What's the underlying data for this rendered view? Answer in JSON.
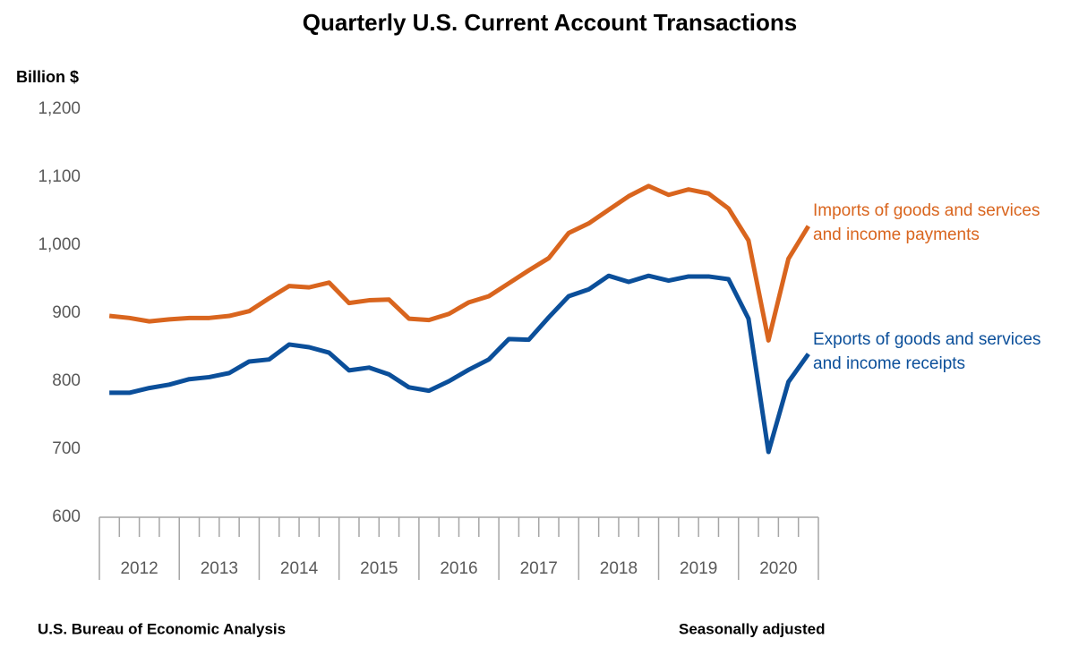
{
  "chart_data": {
    "type": "line",
    "title": "Quarterly U.S. Current Account Transactions",
    "y_label": "Billion $",
    "source": "U.S. Bureau of Economic Analysis",
    "note": "Seasonally adjusted",
    "categories": [
      "2012",
      null,
      null,
      null,
      "2013",
      null,
      null,
      null,
      "2014",
      null,
      null,
      null,
      "2015",
      null,
      null,
      null,
      "2016",
      null,
      null,
      null,
      "2017",
      null,
      null,
      null,
      "2018",
      null,
      null,
      null,
      "2019",
      null,
      null,
      null,
      "2020",
      null,
      null,
      null
    ],
    "series": [
      {
        "name": "Imports of goods and services and income payments",
        "color": "#d9651e",
        "values": [
          896,
          893,
          888,
          891,
          893,
          893,
          896,
          903,
          922,
          940,
          938,
          945,
          915,
          919,
          920,
          892,
          890,
          899,
          916,
          925,
          944,
          963,
          981,
          1018,
          1032,
          1052,
          1072,
          1087,
          1074,
          1082,
          1076,
          1054,
          1007,
          860,
          980,
          1028
        ]
      },
      {
        "name": "Exports of goods and services and income receipts",
        "color": "#0b4f9a",
        "values": [
          783,
          783,
          790,
          795,
          803,
          806,
          812,
          829,
          832,
          854,
          850,
          842,
          816,
          820,
          810,
          791,
          786,
          800,
          817,
          832,
          862,
          861,
          894,
          925,
          935,
          955,
          946,
          955,
          948,
          954,
          954,
          950,
          892,
          696,
          799,
          840
        ]
      }
    ],
    "ylim": [
      600,
      1200
    ],
    "yticks": [
      600,
      700,
      800,
      900,
      {
        "value": 1000,
        "label": "1,000"
      },
      {
        "value": 1100,
        "label": "1,100"
      },
      {
        "value": 1200,
        "label": "1,200"
      }
    ],
    "grid": false
  }
}
